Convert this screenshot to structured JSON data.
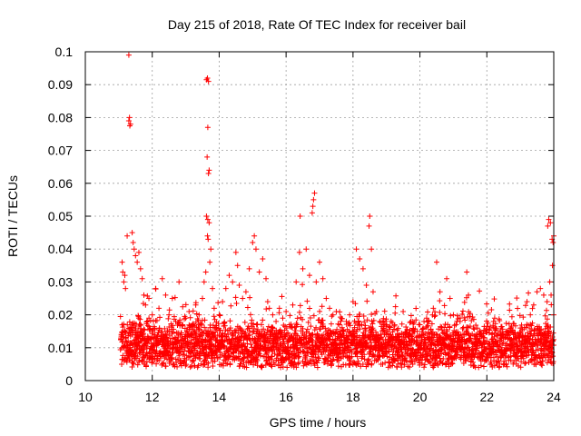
{
  "chart_data": {
    "type": "scatter",
    "title": "Day 215 of 2018, Rate Of TEC Index for receiver bail",
    "xlabel": "GPS time / hours",
    "ylabel": "ROTI / TECUs",
    "xlim": [
      10,
      24
    ],
    "ylim": [
      0,
      0.1
    ],
    "x_ticks": [
      10,
      12,
      14,
      16,
      18,
      20,
      22,
      24
    ],
    "x_tick_labels": [
      "10",
      "12",
      "14",
      "16",
      "18",
      "20",
      "22",
      "24"
    ],
    "y_ticks": [
      0,
      0.01,
      0.02,
      0.03,
      0.04,
      0.05,
      0.06,
      0.07,
      0.08,
      0.09,
      0.1
    ],
    "y_tick_labels": [
      "0",
      "0.01",
      "0.02",
      "0.03",
      "0.04",
      "0.05",
      "0.06",
      "0.07",
      "0.08",
      "0.09",
      "0.1"
    ],
    "grid": true,
    "marker": "+",
    "color": "#ff0000",
    "series": [
      {
        "name": "ROTI",
        "points": [
          [
            11.3,
            0.099
          ],
          [
            11.3,
            0.079
          ],
          [
            11.32,
            0.08
          ],
          [
            11.35,
            0.078
          ],
          [
            11.33,
            0.0775
          ],
          [
            13.65,
            0.092
          ],
          [
            13.68,
            0.091
          ],
          [
            13.62,
            0.0915
          ],
          [
            13.66,
            0.077
          ],
          [
            13.64,
            0.068
          ],
          [
            13.7,
            0.064
          ],
          [
            13.68,
            0.063
          ],
          [
            13.62,
            0.05
          ],
          [
            13.66,
            0.049
          ],
          [
            13.7,
            0.048
          ],
          [
            13.65,
            0.044
          ],
          [
            13.67,
            0.043
          ],
          [
            16.42,
            0.05
          ],
          [
            16.85,
            0.057
          ],
          [
            16.82,
            0.055
          ],
          [
            16.8,
            0.053
          ],
          [
            16.78,
            0.051
          ],
          [
            18.5,
            0.05
          ],
          [
            18.48,
            0.047
          ],
          [
            23.85,
            0.049
          ],
          [
            23.82,
            0.047
          ],
          [
            23.9,
            0.048
          ],
          [
            24.0,
            0.044
          ],
          [
            23.98,
            0.042
          ],
          [
            23.95,
            0.043
          ],
          [
            11.1,
            0.036
          ],
          [
            11.12,
            0.033
          ],
          [
            11.15,
            0.03
          ],
          [
            11.18,
            0.032
          ],
          [
            11.2,
            0.028
          ],
          [
            11.25,
            0.044
          ],
          [
            11.4,
            0.045
          ],
          [
            11.43,
            0.042
          ],
          [
            11.46,
            0.04
          ],
          [
            11.5,
            0.038
          ],
          [
            11.55,
            0.036
          ],
          [
            11.6,
            0.039
          ],
          [
            11.65,
            0.034
          ],
          [
            11.7,
            0.031
          ],
          [
            11.75,
            0.026
          ],
          [
            11.8,
            0.023
          ],
          [
            11.9,
            0.025
          ],
          [
            12.0,
            0.02
          ],
          [
            12.1,
            0.028
          ],
          [
            12.2,
            0.022
          ],
          [
            12.3,
            0.031
          ],
          [
            12.4,
            0.026
          ],
          [
            12.5,
            0.02
          ],
          [
            12.6,
            0.025
          ],
          [
            12.7,
            0.018
          ],
          [
            12.8,
            0.03
          ],
          [
            12.9,
            0.017
          ],
          [
            13.0,
            0.019
          ],
          [
            13.1,
            0.021
          ],
          [
            13.2,
            0.017
          ],
          [
            13.3,
            0.023
          ],
          [
            13.4,
            0.02
          ],
          [
            13.5,
            0.025
          ],
          [
            13.55,
            0.03
          ],
          [
            13.6,
            0.033
          ],
          [
            13.72,
            0.036
          ],
          [
            13.75,
            0.04
          ],
          [
            13.8,
            0.028
          ],
          [
            13.85,
            0.022
          ],
          [
            13.9,
            0.016
          ],
          [
            14.0,
            0.02
          ],
          [
            14.1,
            0.024
          ],
          [
            14.2,
            0.028
          ],
          [
            14.3,
            0.032
          ],
          [
            14.4,
            0.03
          ],
          [
            14.5,
            0.039
          ],
          [
            14.55,
            0.035
          ],
          [
            14.6,
            0.029
          ],
          [
            14.7,
            0.025
          ],
          [
            14.8,
            0.027
          ],
          [
            14.9,
            0.034
          ],
          [
            15.0,
            0.042
          ],
          [
            15.05,
            0.044
          ],
          [
            15.1,
            0.04
          ],
          [
            15.2,
            0.033
          ],
          [
            15.3,
            0.037
          ],
          [
            15.4,
            0.031
          ],
          [
            15.45,
            0.024
          ],
          [
            15.5,
            0.022
          ],
          [
            15.6,
            0.02
          ],
          [
            15.7,
            0.018
          ],
          [
            15.8,
            0.022
          ],
          [
            15.9,
            0.019
          ],
          [
            16.0,
            0.021
          ],
          [
            16.1,
            0.017
          ],
          [
            16.2,
            0.023
          ],
          [
            16.3,
            0.03
          ],
          [
            16.4,
            0.039
          ],
          [
            16.5,
            0.034
          ],
          [
            16.6,
            0.04
          ],
          [
            16.7,
            0.032
          ],
          [
            16.9,
            0.03
          ],
          [
            17.0,
            0.036
          ],
          [
            17.1,
            0.031
          ],
          [
            17.2,
            0.025
          ],
          [
            17.3,
            0.022
          ],
          [
            17.4,
            0.02
          ],
          [
            17.5,
            0.021
          ],
          [
            17.6,
            0.017
          ],
          [
            17.7,
            0.015
          ],
          [
            17.8,
            0.018
          ],
          [
            17.9,
            0.02
          ],
          [
            18.0,
            0.024
          ],
          [
            18.1,
            0.04
          ],
          [
            18.2,
            0.037
          ],
          [
            18.3,
            0.034
          ],
          [
            18.4,
            0.029
          ],
          [
            18.55,
            0.04
          ],
          [
            18.6,
            0.027
          ],
          [
            18.7,
            0.021
          ],
          [
            18.8,
            0.018
          ],
          [
            18.9,
            0.016
          ],
          [
            19.0,
            0.014
          ],
          [
            19.2,
            0.013
          ],
          [
            19.4,
            0.012
          ],
          [
            19.6,
            0.014
          ],
          [
            19.8,
            0.015
          ],
          [
            20.0,
            0.017
          ],
          [
            20.2,
            0.019
          ],
          [
            20.4,
            0.022
          ],
          [
            20.5,
            0.036
          ],
          [
            20.6,
            0.027
          ],
          [
            20.8,
            0.031
          ],
          [
            20.9,
            0.025
          ],
          [
            21.0,
            0.02
          ],
          [
            21.2,
            0.018
          ],
          [
            21.4,
            0.033
          ],
          [
            21.45,
            0.026
          ],
          [
            21.6,
            0.016
          ],
          [
            21.8,
            0.014
          ],
          [
            22.0,
            0.012
          ],
          [
            22.2,
            0.018
          ],
          [
            22.4,
            0.013
          ],
          [
            22.6,
            0.015
          ],
          [
            22.8,
            0.014
          ],
          [
            23.0,
            0.016
          ],
          [
            23.2,
            0.024
          ],
          [
            23.3,
            0.02
          ],
          [
            23.4,
            0.023
          ],
          [
            23.5,
            0.027
          ],
          [
            23.6,
            0.028
          ],
          [
            23.7,
            0.026
          ],
          [
            23.8,
            0.024
          ],
          [
            23.88,
            0.03
          ],
          [
            23.92,
            0.026
          ],
          [
            23.96,
            0.035
          ],
          [
            24.0,
            0.02
          ]
        ],
        "dense_band": {
          "x_start": 11.05,
          "x_end": 24.0,
          "step": 0.012,
          "baseline": 0.0105,
          "spread": 0.012,
          "min_value": 0.004
        }
      }
    ]
  }
}
